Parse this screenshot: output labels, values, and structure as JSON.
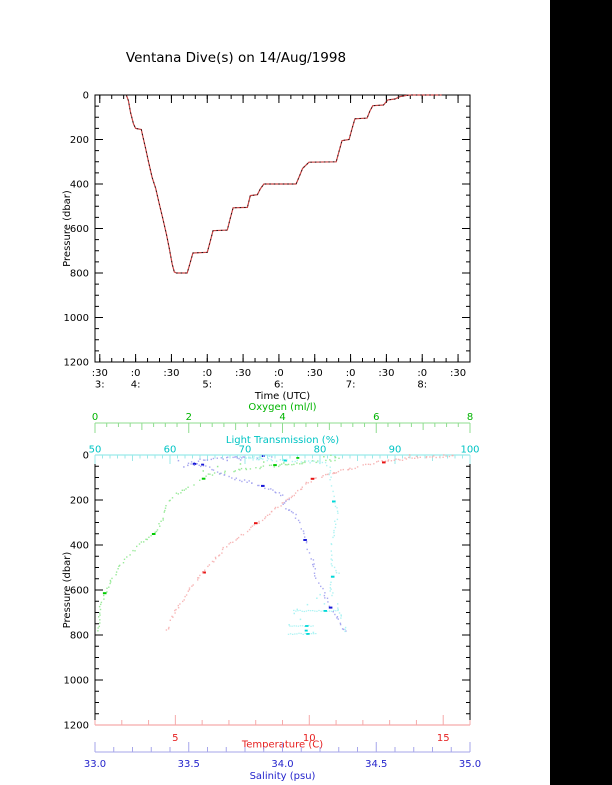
{
  "title": "Ventana Dive(s) on 14/Aug/1998",
  "colors": {
    "background": "#ffffff",
    "right_bar": "#000000",
    "axis_black": "#000000",
    "dive_line": "#cc4444",
    "dive_overlay": "#161616",
    "oxygen_axis": "#8fdc8f",
    "oxygen_label": "#00b400",
    "oxygen_pale": "#8fe88f",
    "oxygen_bold": "#00cc00",
    "lt_axis": "#9be9e9",
    "lt_label": "#00c4c4",
    "lt_pale": "#a8f2f2",
    "lt_bold": "#00d8d8",
    "temp_axis": "#f5aaaa",
    "temp_label": "#e62020",
    "temp_pale": "#f6b0b0",
    "temp_bold": "#e81212",
    "sal_axis": "#a6a6ea",
    "sal_label": "#2424cc",
    "sal_pale": "#a0a0ee",
    "sal_bold": "#1818d8"
  },
  "chart_data": [
    {
      "type": "line",
      "name": "dive-depth-vs-time",
      "xlabel": "Time (UTC)",
      "ylabel": "Pressure (dbar)",
      "xlim": [
        3.4333,
        8.6667
      ],
      "ylim": [
        0,
        1200
      ],
      "y_axis_reversed": true,
      "grid": false,
      "pressure_ticks": [
        {
          "v": 0,
          "label": "0"
        },
        {
          "v": 200,
          "label": "200"
        },
        {
          "v": 400,
          "label": "400"
        },
        {
          "v": 600,
          "label": "600"
        },
        {
          "v": 800,
          "label": "800"
        },
        {
          "v": 1000,
          "label": "1000"
        },
        {
          "v": 1200,
          "label": "1200"
        }
      ],
      "pressure_minor_step": 50,
      "time_ticks": [
        {
          "t": 3.5,
          "minute": ":30",
          "hour": "3:"
        },
        {
          "t": 4.0,
          "minute": ":0",
          "hour": "4:"
        },
        {
          "t": 4.5,
          "minute": ":30",
          "hour": ""
        },
        {
          "t": 5.0,
          "minute": ":0",
          "hour": "5:"
        },
        {
          "t": 5.5,
          "minute": ":30",
          "hour": ""
        },
        {
          "t": 6.0,
          "minute": ":0",
          "hour": "6:"
        },
        {
          "t": 6.5,
          "minute": ":30",
          "hour": ""
        },
        {
          "t": 7.0,
          "minute": ":0",
          "hour": "7:"
        },
        {
          "t": 7.5,
          "minute": ":30",
          "hour": ""
        },
        {
          "t": 8.0,
          "minute": ":0",
          "hour": "8:"
        },
        {
          "t": 8.5,
          "minute": ":30",
          "hour": ""
        }
      ],
      "time_minor_step_hours": 0.166667,
      "profile_time_pressure": [
        [
          3.87,
          0
        ],
        [
          3.9,
          25
        ],
        [
          3.93,
          80
        ],
        [
          3.97,
          130
        ],
        [
          4.0,
          150
        ],
        [
          4.08,
          155
        ],
        [
          4.1,
          185
        ],
        [
          4.14,
          240
        ],
        [
          4.18,
          300
        ],
        [
          4.23,
          370
        ],
        [
          4.28,
          420
        ],
        [
          4.33,
          490
        ],
        [
          4.38,
          555
        ],
        [
          4.43,
          625
        ],
        [
          4.47,
          690
        ],
        [
          4.51,
          760
        ],
        [
          4.54,
          795
        ],
        [
          4.57,
          800
        ],
        [
          4.72,
          800
        ],
        [
          4.76,
          755
        ],
        [
          4.8,
          710
        ],
        [
          5.0,
          707
        ],
        [
          5.04,
          660
        ],
        [
          5.08,
          610
        ],
        [
          5.28,
          607
        ],
        [
          5.32,
          555
        ],
        [
          5.36,
          507
        ],
        [
          5.56,
          505
        ],
        [
          5.6,
          452
        ],
        [
          5.7,
          448
        ],
        [
          5.74,
          422
        ],
        [
          5.79,
          400
        ],
        [
          6.24,
          400
        ],
        [
          6.29,
          362
        ],
        [
          6.33,
          330
        ],
        [
          6.42,
          302
        ],
        [
          6.8,
          300
        ],
        [
          6.84,
          252
        ],
        [
          6.88,
          205
        ],
        [
          6.98,
          200
        ],
        [
          7.02,
          152
        ],
        [
          7.06,
          107
        ],
        [
          7.23,
          104
        ],
        [
          7.27,
          72
        ],
        [
          7.31,
          48
        ],
        [
          7.46,
          45
        ],
        [
          7.52,
          22
        ],
        [
          7.62,
          18
        ],
        [
          7.68,
          8
        ],
        [
          7.78,
          2
        ],
        [
          7.85,
          0
        ],
        [
          8.27,
          0
        ]
      ]
    },
    {
      "type": "scatter",
      "name": "ctd-profiles-vs-pressure",
      "ylabel": "Pressure (dbar)",
      "ylim": [
        0,
        1200
      ],
      "y_axis_reversed": true,
      "pressure_ticks": [
        {
          "v": 0,
          "label": "0"
        },
        {
          "v": 200,
          "label": "200"
        },
        {
          "v": 400,
          "label": "400"
        },
        {
          "v": 600,
          "label": "600"
        },
        {
          "v": 800,
          "label": "800"
        },
        {
          "v": 1000,
          "label": "1000"
        },
        {
          "v": 1200,
          "label": "1200"
        }
      ],
      "pressure_minor_step": 50,
      "series": [
        {
          "name": "oxygen",
          "axis_label": "Oxygen (ml/l)",
          "axis_position": "floating-top",
          "xlim": [
            0,
            8
          ],
          "ticks": [
            {
              "v": 0,
              "label": "0"
            },
            {
              "v": 2,
              "label": "2"
            },
            {
              "v": 4,
              "label": "4"
            },
            {
              "v": 6,
              "label": "6"
            },
            {
              "v": 8,
              "label": "8"
            }
          ],
          "minor_step": 0.25,
          "points": [
            [
              5.05,
              2
            ],
            [
              5.2,
              12
            ],
            [
              5.15,
              20
            ],
            [
              4.6,
              32
            ],
            [
              3.95,
              45
            ],
            [
              3.3,
              60
            ],
            [
              2.75,
              75
            ],
            [
              2.4,
              90
            ],
            [
              2.25,
              110
            ],
            [
              2.1,
              130
            ],
            [
              1.95,
              150
            ],
            [
              1.75,
              175
            ],
            [
              1.62,
              200
            ],
            [
              1.52,
              225
            ],
            [
              1.46,
              255
            ],
            [
              1.43,
              290
            ],
            [
              1.35,
              330
            ],
            [
              1.15,
              365
            ],
            [
              0.95,
              395
            ],
            [
              0.8,
              430
            ],
            [
              0.65,
              465
            ],
            [
              0.52,
              500
            ],
            [
              0.4,
              540
            ],
            [
              0.3,
              575
            ],
            [
              0.24,
              605
            ],
            [
              0.18,
              640
            ],
            [
              0.12,
              675
            ],
            [
              0.09,
              710
            ],
            [
              0.08,
              750
            ],
            [
              0.06,
              790
            ]
          ],
          "scatter": [
            [
              4.9,
              8
            ],
            [
              4.3,
              18
            ],
            [
              3.6,
              28
            ],
            [
              3.1,
              40
            ],
            [
              2.6,
              55
            ],
            [
              2.3,
              70
            ],
            [
              4.05,
              38
            ],
            [
              4.5,
              25
            ]
          ]
        },
        {
          "name": "light-transmission",
          "axis_label": "Light Transmission (%)",
          "axis_position": "top-border",
          "xlim": [
            50,
            100
          ],
          "ticks": [
            {
              "v": 50,
              "label": "50"
            },
            {
              "v": 60,
              "label": "60"
            },
            {
              "v": 70,
              "label": "70"
            },
            {
              "v": 80,
              "label": "80"
            },
            {
              "v": 90,
              "label": "90"
            },
            {
              "v": 100,
              "label": "100"
            }
          ],
          "minor_step": 1,
          "points": [
            [
              74,
              2
            ],
            [
              71.5,
              8
            ],
            [
              70,
              14
            ],
            [
              72.5,
              20
            ],
            [
              76,
              25
            ],
            [
              79,
              30
            ],
            [
              80.6,
              38
            ],
            [
              81.2,
              55
            ],
            [
              81.3,
              80
            ],
            [
              81.4,
              110
            ],
            [
              81.5,
              145
            ],
            [
              81.8,
              180
            ],
            [
              82.1,
              215
            ],
            [
              82.3,
              250
            ],
            [
              82.2,
              285
            ],
            [
              82,
              320
            ],
            [
              81.8,
              355
            ],
            [
              81.6,
              390
            ],
            [
              81.5,
              425
            ],
            [
              81.6,
              460
            ],
            [
              81.7,
              495
            ],
            [
              82.4,
              520
            ],
            [
              81.6,
              545
            ],
            [
              81.3,
              575
            ],
            [
              81.5,
              605
            ],
            [
              82,
              645
            ],
            [
              82.4,
              685
            ],
            [
              82.8,
              720
            ],
            [
              83.2,
              755
            ],
            [
              83.6,
              795
            ]
          ],
          "scatter": [
            [
              79.5,
              640
            ],
            [
              78.5,
              665
            ],
            [
              77,
              690
            ],
            [
              76.5,
              710
            ],
            [
              77.5,
              735
            ],
            [
              76,
              760
            ],
            [
              78,
              775
            ],
            [
              79,
              795
            ],
            [
              80,
              625
            ],
            [
              80.5,
              655
            ],
            [
              70.5,
              12
            ],
            [
              72,
              18
            ],
            [
              69.5,
              15
            ]
          ],
          "spikes": [
            {
              "pressure": 693,
              "min": 76.5,
              "max": 82.5
            },
            {
              "pressure": 760,
              "min": 76.0,
              "max": 79.2
            },
            {
              "pressure": 795,
              "min": 75.8,
              "max": 79.5
            }
          ]
        },
        {
          "name": "temperature",
          "axis_label": "Temperature (C)",
          "axis_position": "bottom-border",
          "xlim": [
            2,
            16
          ],
          "ticks": [
            {
              "v": 5,
              "label": "5"
            },
            {
              "v": 10,
              "label": "10"
            },
            {
              "v": 15,
              "label": "15"
            }
          ],
          "minor_step": 1,
          "points": [
            [
              15.4,
              4
            ],
            [
              14.6,
              7
            ],
            [
              13.9,
              12
            ],
            [
              13.4,
              20
            ],
            [
              12.6,
              32
            ],
            [
              12.1,
              45
            ],
            [
              11.8,
              55
            ],
            [
              11.2,
              70
            ],
            [
              10.6,
              88
            ],
            [
              10.2,
              105
            ],
            [
              9.9,
              125
            ],
            [
              9.7,
              150
            ],
            [
              9.45,
              175
            ],
            [
              9.2,
              200
            ],
            [
              8.85,
              230
            ],
            [
              8.5,
              260
            ],
            [
              8.1,
              300
            ],
            [
              7.7,
              340
            ],
            [
              7.3,
              375
            ],
            [
              6.95,
              400
            ],
            [
              6.65,
              440
            ],
            [
              6.4,
              470
            ],
            [
              6.2,
              500
            ],
            [
              5.95,
              535
            ],
            [
              5.75,
              565
            ],
            [
              5.5,
              600
            ],
            [
              5.3,
              640
            ],
            [
              5.1,
              675
            ],
            [
              4.95,
              705
            ],
            [
              4.8,
              745
            ],
            [
              4.65,
              790
            ]
          ],
          "scatter": [
            [
              13.8,
              6
            ],
            [
              12.9,
              25
            ],
            [
              11.5,
              60
            ],
            [
              10.9,
              78
            ]
          ]
        },
        {
          "name": "salinity",
          "axis_label": "Salinity (psu)",
          "axis_position": "floating-bottom",
          "xlim": [
            33.0,
            35.0
          ],
          "ticks": [
            {
              "v": 33.0,
              "label": "33.0"
            },
            {
              "v": 33.5,
              "label": "33.5"
            },
            {
              "v": 34.0,
              "label": "34.0"
            },
            {
              "v": 34.5,
              "label": "34.5"
            },
            {
              "v": 35.0,
              "label": "35.0"
            }
          ],
          "minor_step": 0.1,
          "points": [
            [
              33.75,
              5
            ],
            [
              33.8,
              10
            ],
            [
              33.62,
              18
            ],
            [
              33.55,
              25
            ],
            [
              33.5,
              35
            ],
            [
              33.58,
              48
            ],
            [
              33.62,
              62
            ],
            [
              33.66,
              80
            ],
            [
              33.72,
              100
            ],
            [
              33.82,
              120
            ],
            [
              33.9,
              140
            ],
            [
              33.97,
              165
            ],
            [
              34.03,
              195
            ],
            [
              34.0,
              215
            ],
            [
              34.02,
              235
            ],
            [
              34.06,
              260
            ],
            [
              34.08,
              285
            ],
            [
              34.1,
              315
            ],
            [
              34.11,
              350
            ],
            [
              34.13,
              395
            ],
            [
              34.14,
              430
            ],
            [
              34.16,
              470
            ],
            [
              34.17,
              510
            ],
            [
              34.18,
              545
            ],
            [
              34.2,
              580
            ],
            [
              34.22,
              615
            ],
            [
              34.24,
              650
            ],
            [
              34.27,
              685
            ],
            [
              34.29,
              715
            ],
            [
              34.31,
              750
            ],
            [
              34.34,
              795
            ]
          ],
          "scatter": [
            [
              33.45,
              30
            ],
            [
              33.49,
              42
            ],
            [
              33.53,
              50
            ],
            [
              33.57,
              38
            ],
            [
              33.47,
              55
            ],
            [
              33.86,
              15
            ],
            [
              33.9,
              10
            ],
            [
              33.78,
              22
            ],
            [
              33.7,
              30
            ],
            [
              33.95,
              8
            ]
          ]
        }
      ]
    }
  ]
}
